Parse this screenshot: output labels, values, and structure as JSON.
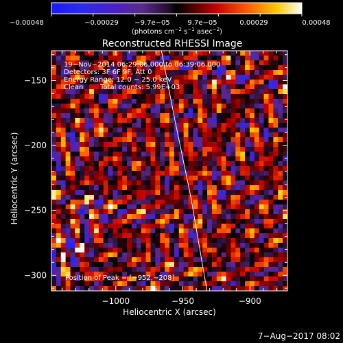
{
  "chart_data": {
    "type": "heatmap",
    "title": "Reconstructed RHESSI Image",
    "xlabel": "Heliocentric X (arcsec)",
    "ylabel": "Heliocentric Y (arcsec)",
    "xlim": [
      -1048,
      -872
    ],
    "ylim": [
      -312,
      -127
    ],
    "x_ticks": [
      -1000,
      -950,
      -900
    ],
    "y_ticks": [
      -150,
      -200,
      -250,
      -300
    ],
    "x_tick_labels": [
      "−1000",
      "−950",
      "−900"
    ],
    "y_tick_labels": [
      "−150",
      "−200",
      "−250",
      "−300"
    ],
    "grid": false,
    "colorbar": {
      "ticks": [
        "−0.00048",
        "−0.00029",
        "−9.7e−05",
        "9.7e−05",
        "0.00029",
        "0.00048"
      ],
      "min": -0.00048,
      "max": 0.00048,
      "units_main": "(photons cm",
      "units_exp1": "−2",
      "units_mid": " s",
      "units_exp2": "−1",
      "units_tail": " asec",
      "units_exp3": "−2",
      "units_close": ")"
    },
    "annotations": {
      "time": "19−Nov−2014 06:29:06.000 to 06:39:06.000",
      "detectors": "Detectors: 3F 6F 9F, Att 0",
      "energy": "Energy Range: 12.0 − 25.0 keV",
      "clean_label": "Clean",
      "counts": "Total counts: 5.99E+03",
      "peak": "Position of Peak = [−952,−208]"
    },
    "limb": {
      "name": "solar limb",
      "points": [
        [
          -966,
          -127
        ],
        [
          -956,
          -180
        ],
        [
          -944,
          -240
        ],
        [
          -932,
          -312
        ]
      ]
    },
    "colors": {
      "background": "#000000",
      "text": "#ffffff",
      "limb": "#ffffff"
    }
  },
  "footer": {
    "date": "7−Aug−2017 08:02"
  }
}
